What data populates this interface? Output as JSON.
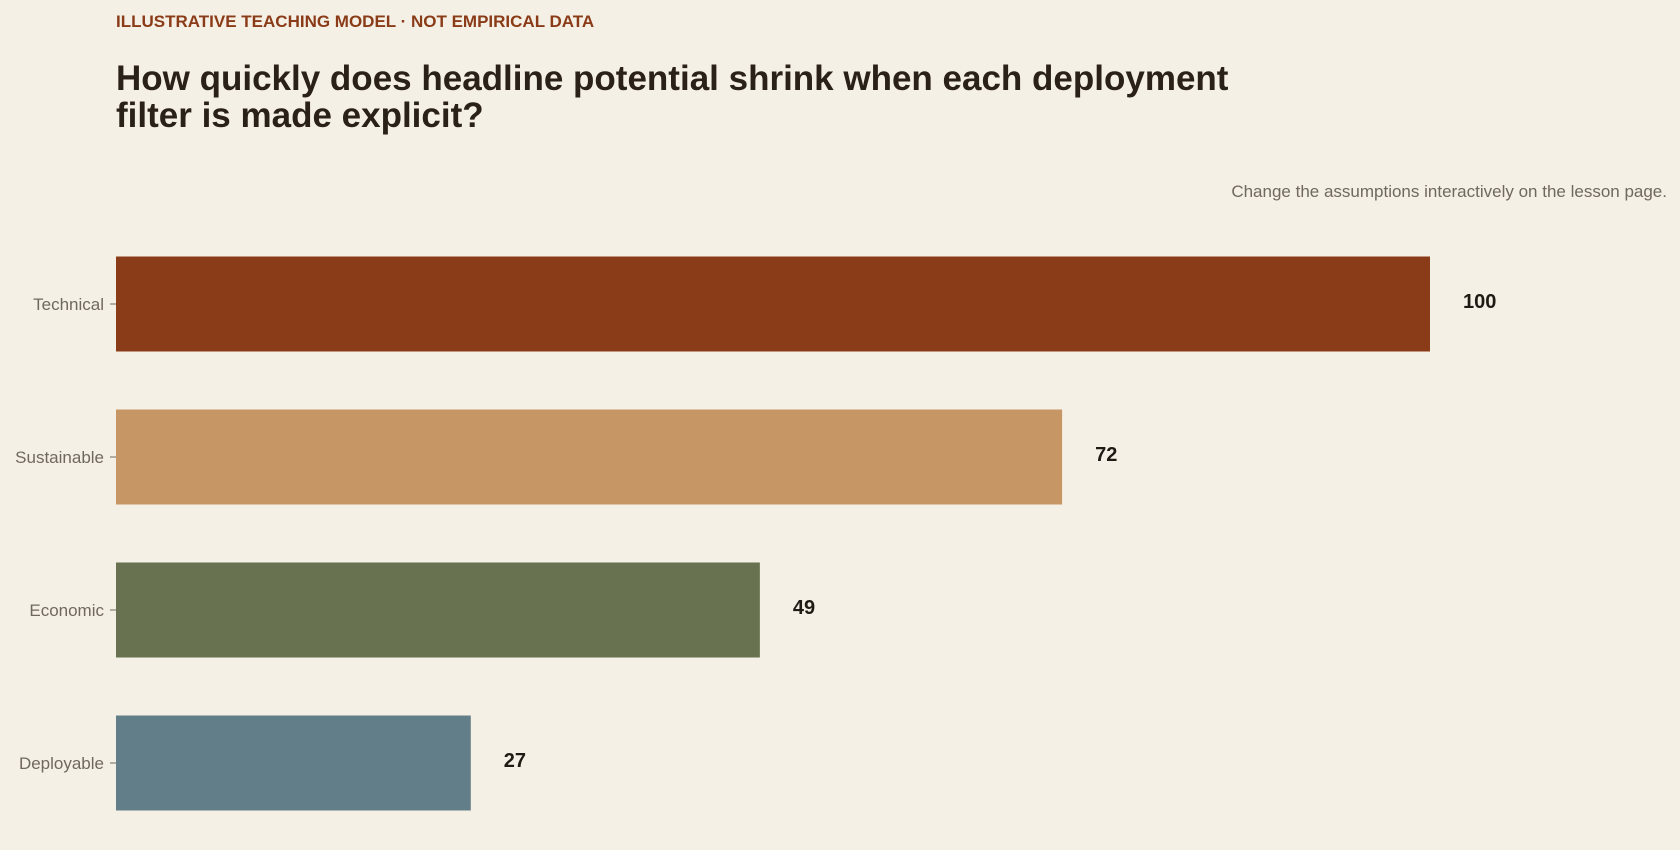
{
  "kicker": "ILLUSTRATIVE TEACHING MODEL · NOT EMPIRICAL DATA",
  "title": "How quickly does headline potential shrink when each deployment filter is made explicit?",
  "note": "Change the assumptions interactively on the lesson page.",
  "colors": {
    "background": "#f5f0e5",
    "kicker": "#8a3b18",
    "title": "#2a2118",
    "axis_label": "#6f6860",
    "value_label": "#1f1a14"
  },
  "chart_data": {
    "type": "bar",
    "orientation": "horizontal",
    "categories": [
      "Technical",
      "Sustainable",
      "Economic",
      "Deployable"
    ],
    "values": [
      100,
      72,
      49,
      27
    ],
    "bar_colors": [
      "#8a3b18",
      "#c69764",
      "#687250",
      "#627e88"
    ],
    "xlim": [
      0,
      100
    ],
    "grid": false,
    "legend": "none",
    "data_labels": true
  }
}
